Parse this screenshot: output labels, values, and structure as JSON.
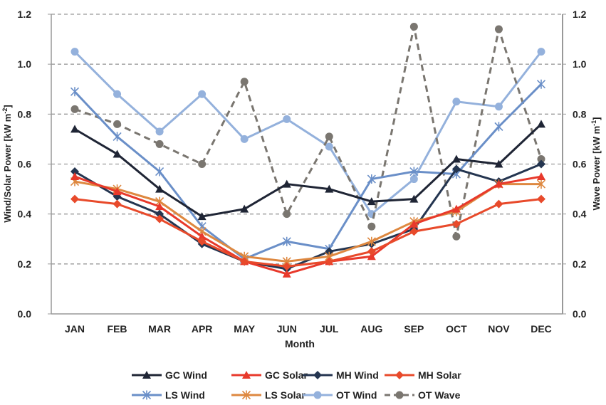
{
  "chart_data": {
    "type": "line",
    "title": "",
    "xlabel": "Month",
    "ylabel": "Wind/Solar Power [kW m-2]",
    "ylabel_parts": {
      "base": "Wind/Solar Power  [kW m",
      "sup": "-2",
      "end": "]"
    },
    "y2label": "Wave Power [kW m-1]",
    "y2label_parts": {
      "base": "Wave Power [kW m",
      "sup": "-1",
      "end": "]"
    },
    "ylim": [
      0,
      1.2
    ],
    "y2lim": [
      0,
      1.2
    ],
    "yticks": [
      "0.0",
      "0.2",
      "0.4",
      "0.6",
      "0.8",
      "1.0",
      "1.2"
    ],
    "grid": true,
    "legend_placement": "bottom",
    "categories": [
      "JAN",
      "FEB",
      "MAR",
      "APR",
      "MAY",
      "JUN",
      "JUL",
      "AUG",
      "SEP",
      "OCT",
      "NOV",
      "DEC"
    ],
    "series": [
      {
        "name": "GC Wind",
        "color": "#1f2535",
        "marker": "triangle",
        "dash": false,
        "axis": "left",
        "values": [
          0.74,
          0.64,
          0.5,
          0.39,
          0.42,
          0.52,
          0.5,
          0.45,
          0.46,
          0.62,
          0.6,
          0.76
        ]
      },
      {
        "name": "GC Solar",
        "color": "#e8392b",
        "marker": "triangle",
        "dash": false,
        "axis": "left",
        "values": [
          0.55,
          0.49,
          0.43,
          0.31,
          0.21,
          0.16,
          0.21,
          0.23,
          0.36,
          0.42,
          0.52,
          0.55
        ]
      },
      {
        "name": "MH Wind",
        "color": "#243550",
        "marker": "diamond",
        "dash": false,
        "axis": "left",
        "values": [
          0.57,
          0.47,
          0.4,
          0.28,
          0.21,
          0.18,
          0.25,
          0.28,
          0.34,
          0.58,
          0.53,
          0.6
        ]
      },
      {
        "name": "MH Solar",
        "color": "#e84a2b",
        "marker": "diamond",
        "dash": false,
        "axis": "left",
        "values": [
          0.46,
          0.44,
          0.38,
          0.29,
          0.21,
          0.19,
          0.21,
          0.25,
          0.33,
          0.36,
          0.44,
          0.46
        ]
      },
      {
        "name": "LS Wind",
        "color": "#6a8fc8",
        "marker": "asterisk",
        "dash": false,
        "axis": "left",
        "values": [
          0.89,
          0.71,
          0.57,
          0.35,
          0.22,
          0.29,
          0.26,
          0.54,
          0.57,
          0.56,
          0.75,
          0.92
        ]
      },
      {
        "name": "LS Solar",
        "color": "#de8840",
        "marker": "asterisk",
        "dash": false,
        "axis": "left",
        "values": [
          0.53,
          0.5,
          0.45,
          0.33,
          0.23,
          0.21,
          0.23,
          0.29,
          0.37,
          0.41,
          0.52,
          0.52
        ]
      },
      {
        "name": "OT Wind",
        "color": "#94b1dc",
        "marker": "circle",
        "dash": false,
        "axis": "left",
        "values": [
          1.05,
          0.88,
          0.73,
          0.88,
          0.7,
          0.78,
          0.67,
          0.4,
          0.54,
          0.85,
          0.83,
          1.05
        ]
      },
      {
        "name": "OT Wave",
        "color": "#7a7670",
        "marker": "circle",
        "dash": true,
        "axis": "right",
        "values": [
          0.82,
          0.76,
          0.68,
          0.6,
          0.93,
          0.4,
          0.71,
          0.35,
          1.15,
          0.31,
          1.14,
          0.62
        ]
      }
    ]
  }
}
